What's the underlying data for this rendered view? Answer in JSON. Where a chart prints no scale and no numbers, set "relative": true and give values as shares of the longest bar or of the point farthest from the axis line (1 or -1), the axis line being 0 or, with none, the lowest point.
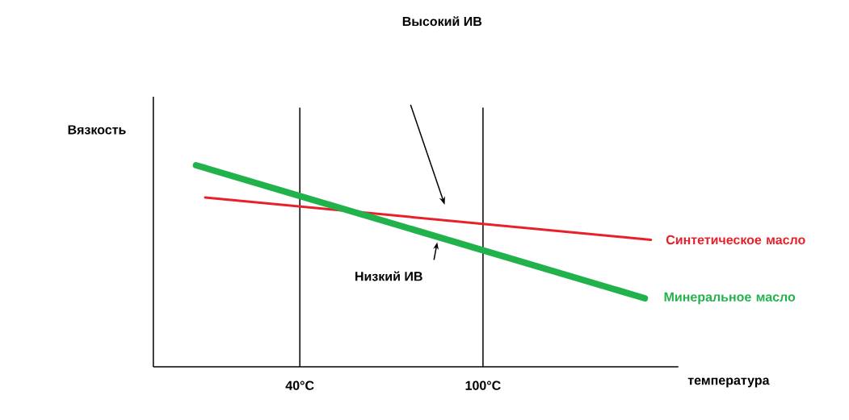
{
  "chart_data": {
    "type": "line",
    "relative": true,
    "xlabel": "температура",
    "ylabel": "Вязкость",
    "xlim": [
      -8,
      164
    ],
    "xticks": [
      {
        "value": 40,
        "label": "40°C"
      },
      {
        "value": 100,
        "label": "100°C"
      }
    ],
    "series": [
      {
        "name": "Синтетическое масло",
        "color": "#e8202a",
        "x": [
          9,
          155
        ],
        "values": [
          0.84,
          0.63
        ]
      },
      {
        "name": "Минеральное масло",
        "color": "#22b24c",
        "x": [
          6,
          153
        ],
        "values": [
          1,
          0.34
        ]
      }
    ],
    "ref_lines": [
      {
        "axis": "x",
        "value": 40,
        "color": "#000000"
      },
      {
        "axis": "x",
        "value": 100,
        "color": "#000000"
      }
    ],
    "annotations": [
      "Высокий ИВ",
      {
        "text": "Низкий ИВ",
        "x": 85,
        "y": 0.65
      }
    ]
  }
}
